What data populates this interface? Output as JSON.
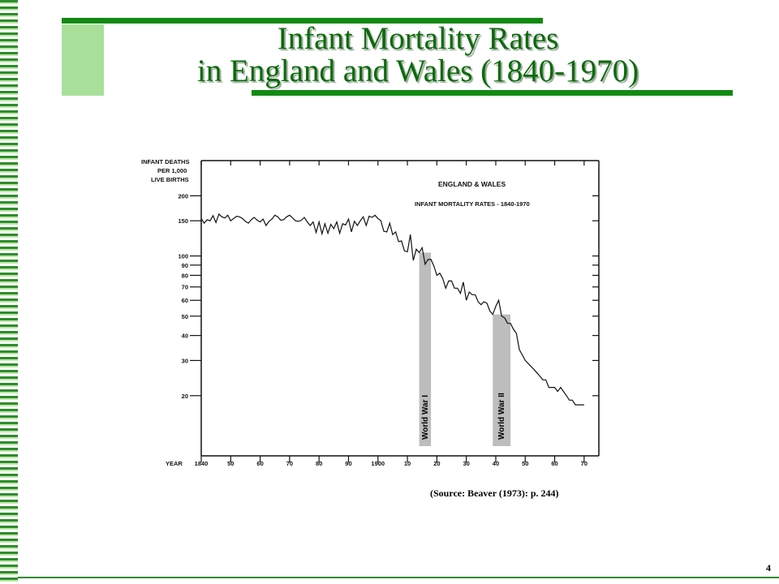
{
  "slide": {
    "title_line1": "Infant Mortality Rates",
    "title_line2": "in England and Wales (1840-1970)",
    "source": "(Source: Beaver (1973): p. 244)",
    "page_number": "4",
    "accent_color": "#128a12"
  },
  "chart_data": {
    "type": "line",
    "title": "ENGLAND & WALES",
    "subtitle": "INFANT MORTALITY RATES - 1840-1970",
    "ylabel_lines": [
      "INFANT DEATHS",
      "PER 1,000",
      "LIVE BIRTHS"
    ],
    "xlabel": "YEAR",
    "y_scale": "log",
    "ylim": [
      10,
      300
    ],
    "xlim": [
      1840,
      1975
    ],
    "y_ticks": [
      {
        "value": 200,
        "label": "200"
      },
      {
        "value": 150,
        "label": "150"
      },
      {
        "value": 100,
        "label": "100"
      },
      {
        "value": 90,
        "label": "90"
      },
      {
        "value": 80,
        "label": "80"
      },
      {
        "value": 70,
        "label": "70"
      },
      {
        "value": 60,
        "label": "60"
      },
      {
        "value": 50,
        "label": "50"
      },
      {
        "value": 40,
        "label": "40"
      },
      {
        "value": 30,
        "label": "30"
      },
      {
        "value": 20,
        "label": "20"
      }
    ],
    "x_ticks": [
      {
        "value": 1840,
        "label": "1840"
      },
      {
        "value": 1850,
        "label": "50"
      },
      {
        "value": 1860,
        "label": "60"
      },
      {
        "value": 1870,
        "label": "70"
      },
      {
        "value": 1880,
        "label": "80"
      },
      {
        "value": 1890,
        "label": "90"
      },
      {
        "value": 1900,
        "label": "1900"
      },
      {
        "value": 1910,
        "label": "10"
      },
      {
        "value": 1920,
        "label": "20"
      },
      {
        "value": 1930,
        "label": "30"
      },
      {
        "value": 1940,
        "label": "40"
      },
      {
        "value": 1950,
        "label": "50"
      },
      {
        "value": 1960,
        "label": "60"
      },
      {
        "value": 1970,
        "label": "70"
      }
    ],
    "shaded_periods": [
      {
        "label": "World War I",
        "start": 1914,
        "end": 1918
      },
      {
        "label": "World War II",
        "start": 1939,
        "end": 1945
      }
    ],
    "series": [
      {
        "x": [
          1840,
          1841,
          1842,
          1843,
          1844,
          1845,
          1846,
          1847,
          1848,
          1849,
          1850,
          1851,
          1852,
          1853,
          1854,
          1855,
          1856,
          1857,
          1858,
          1859,
          1860,
          1861,
          1862,
          1863,
          1864,
          1865,
          1866,
          1867,
          1868,
          1869,
          1870,
          1871,
          1872,
          1873,
          1874,
          1875,
          1876,
          1877,
          1878,
          1879,
          1880,
          1881,
          1882,
          1883,
          1884,
          1885,
          1886,
          1887,
          1888,
          1889,
          1890,
          1891,
          1892,
          1893,
          1894,
          1895,
          1896,
          1897,
          1898,
          1899,
          1900,
          1901,
          1902,
          1903,
          1904,
          1905,
          1906,
          1907,
          1908,
          1909,
          1910,
          1911,
          1912,
          1913,
          1914,
          1915,
          1916,
          1917,
          1918,
          1919,
          1920,
          1921,
          1922,
          1923,
          1924,
          1925,
          1926,
          1927,
          1928,
          1929,
          1930,
          1931,
          1932,
          1933,
          1934,
          1935,
          1936,
          1937,
          1938,
          1939,
          1940,
          1941,
          1942,
          1943,
          1944,
          1945,
          1946,
          1947,
          1948,
          1949,
          1950,
          1951,
          1952,
          1953,
          1954,
          1955,
          1956,
          1957,
          1958,
          1959,
          1960,
          1961,
          1962,
          1963,
          1964,
          1965,
          1966,
          1967,
          1968,
          1969,
          1970
        ],
        "values": [
          154,
          146,
          152,
          150,
          159,
          147,
          162,
          157,
          155,
          160,
          150,
          154,
          158,
          157,
          154,
          149,
          146,
          152,
          156,
          151,
          148,
          153,
          142,
          149,
          153,
          160,
          157,
          151,
          152,
          157,
          160,
          155,
          150,
          149,
          151,
          156,
          148,
          142,
          148,
          131,
          148,
          129,
          145,
          130,
          144,
          137,
          148,
          130,
          145,
          143,
          153,
          132,
          149,
          142,
          150,
          157,
          142,
          158,
          156,
          160,
          154,
          150,
          133,
          132,
          146,
          128,
          132,
          118,
          119,
          106,
          105,
          128,
          95,
          108,
          104,
          110,
          91,
          96,
          96,
          89,
          80,
          82,
          77,
          69,
          75,
          75,
          69,
          69,
          65,
          74,
          60,
          66,
          64,
          64,
          59,
          57,
          59,
          58,
          53,
          51,
          56,
          60,
          50,
          49,
          46,
          46,
          43,
          41,
          34,
          32,
          30,
          29,
          28,
          27,
          26,
          25,
          24,
          24,
          22,
          22,
          22,
          21,
          22,
          21,
          20,
          19,
          19,
          18,
          18,
          18,
          18
        ]
      }
    ]
  }
}
